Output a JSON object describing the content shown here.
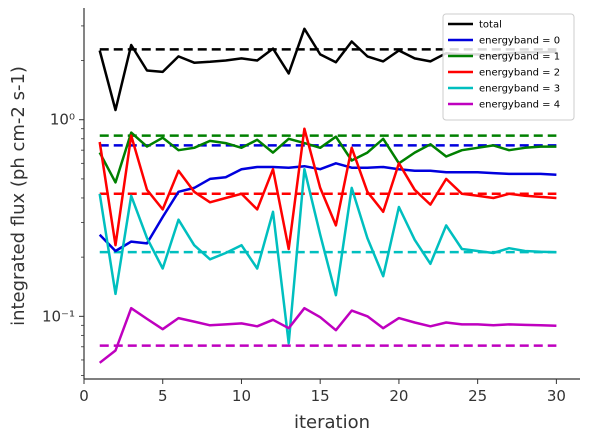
{
  "chart_data": {
    "type": "line",
    "xlabel": "iteration",
    "ylabel": "integrated flux (ph cm-2 s-1)",
    "yscale": "log",
    "xlim": [
      0,
      31.5
    ],
    "ylim": [
      0.048,
      3.7
    ],
    "xticks": [
      0,
      5,
      10,
      15,
      20,
      25,
      30
    ],
    "xtick_labels": [
      "0",
      "5",
      "10",
      "15",
      "20",
      "25",
      "30"
    ],
    "yticks": [
      0.1,
      1.0
    ],
    "ytick_labels": [
      "10⁻¹",
      "10⁰"
    ],
    "grid": false,
    "legend_position": "top-right",
    "x": [
      1,
      2,
      3,
      4,
      5,
      6,
      7,
      8,
      9,
      10,
      11,
      12,
      13,
      14,
      15,
      16,
      17,
      18,
      19,
      20,
      21,
      22,
      23,
      24,
      25,
      26,
      27,
      28,
      29,
      30
    ],
    "series": [
      {
        "name": "total",
        "color": "#000000",
        "values": [
          2.25,
          1.12,
          2.4,
          1.78,
          1.75,
          2.1,
          1.95,
          1.97,
          2.0,
          2.05,
          2.0,
          2.3,
          1.72,
          2.9,
          2.15,
          1.96,
          2.5,
          2.1,
          1.98,
          2.25,
          2.05,
          1.98,
          2.18,
          2.15,
          2.15,
          2.12,
          2.18,
          2.2,
          2.2,
          2.22
        ],
        "reference": 2.28
      },
      {
        "name": "energyband = 0",
        "color": "#0000dd",
        "values": [
          0.26,
          0.215,
          0.24,
          0.235,
          0.32,
          0.43,
          0.45,
          0.5,
          0.51,
          0.56,
          0.575,
          0.575,
          0.57,
          0.58,
          0.56,
          0.6,
          0.57,
          0.57,
          0.575,
          0.56,
          0.55,
          0.55,
          0.54,
          0.54,
          0.54,
          0.535,
          0.53,
          0.53,
          0.53,
          0.525
        ],
        "reference": 0.74
      },
      {
        "name": "energyband = 1",
        "color": "#008000",
        "values": [
          0.68,
          0.48,
          0.86,
          0.73,
          0.81,
          0.7,
          0.72,
          0.78,
          0.76,
          0.72,
          0.79,
          0.68,
          0.8,
          0.76,
          0.72,
          0.82,
          0.62,
          0.68,
          0.8,
          0.6,
          0.68,
          0.75,
          0.65,
          0.7,
          0.72,
          0.74,
          0.7,
          0.72,
          0.73,
          0.73
        ],
        "reference": 0.83
      },
      {
        "name": "energyband = 2",
        "color": "#ff0000",
        "values": [
          0.77,
          0.23,
          0.83,
          0.44,
          0.35,
          0.55,
          0.43,
          0.38,
          0.4,
          0.42,
          0.35,
          0.56,
          0.22,
          0.9,
          0.45,
          0.29,
          0.72,
          0.43,
          0.34,
          0.6,
          0.44,
          0.37,
          0.5,
          0.42,
          0.41,
          0.4,
          0.42,
          0.41,
          0.405,
          0.4
        ],
        "reference": 0.42
      },
      {
        "name": "energyband = 3",
        "color": "#00bfbf",
        "values": [
          0.42,
          0.13,
          0.41,
          0.25,
          0.175,
          0.31,
          0.23,
          0.195,
          0.21,
          0.23,
          0.175,
          0.34,
          0.073,
          0.56,
          0.26,
          0.128,
          0.45,
          0.25,
          0.16,
          0.36,
          0.245,
          0.185,
          0.29,
          0.22,
          0.215,
          0.21,
          0.222,
          0.215,
          0.213,
          0.212
        ],
        "reference": 0.212
      },
      {
        "name": "energyband = 4",
        "color": "#bf00bf",
        "values": [
          0.058,
          0.067,
          0.11,
          0.097,
          0.086,
          0.098,
          0.094,
          0.09,
          0.091,
          0.092,
          0.089,
          0.096,
          0.087,
          0.11,
          0.099,
          0.085,
          0.107,
          0.1,
          0.087,
          0.098,
          0.093,
          0.089,
          0.093,
          0.091,
          0.091,
          0.09,
          0.091,
          0.0905,
          0.09,
          0.0895
        ],
        "reference": 0.071
      }
    ]
  }
}
